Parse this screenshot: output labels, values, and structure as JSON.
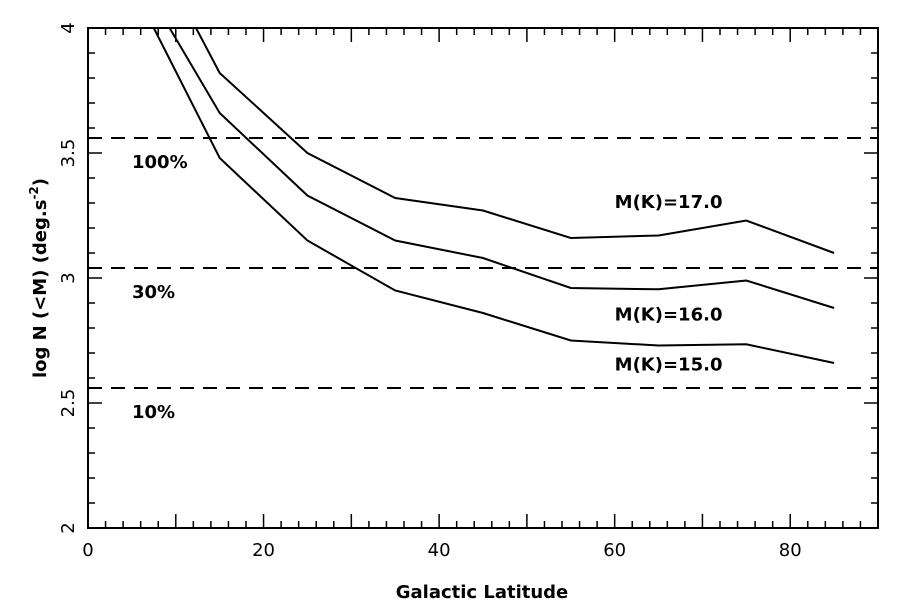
{
  "chart_data": {
    "type": "line",
    "title": "",
    "xlabel": "Galactic Latitude",
    "ylabel": "log N (<M) (deg.s",
    "ylabel_sup": "-2",
    "ylabel_close": ")",
    "xlim": [
      0,
      90
    ],
    "ylim": [
      2,
      4
    ],
    "xticks": [
      0,
      20,
      40,
      60,
      80
    ],
    "xtick_labels": [
      "0",
      "20",
      "40",
      "60",
      "80"
    ],
    "yticks": [
      2,
      2.5,
      3,
      3.5,
      4
    ],
    "ytick_labels": [
      "2",
      "2.5",
      "3",
      "3.5",
      "4"
    ],
    "grid": false,
    "series": [
      {
        "name": "M(K)=17.0",
        "x": [
          12.3,
          15,
          25,
          35,
          45,
          55,
          65,
          75,
          85
        ],
        "y": [
          4.0,
          3.82,
          3.5,
          3.32,
          3.27,
          3.16,
          3.17,
          3.23,
          3.1
        ]
      },
      {
        "name": "M(K)=16.0",
        "x": [
          9.3,
          15,
          25,
          35,
          45,
          55,
          65,
          75,
          85
        ],
        "y": [
          4.0,
          3.66,
          3.33,
          3.15,
          3.08,
          2.96,
          2.955,
          2.99,
          2.88
        ]
      },
      {
        "name": "M(K)=15.0",
        "x": [
          7.5,
          15,
          25,
          35,
          45,
          55,
          65,
          75,
          85
        ],
        "y": [
          4.0,
          3.48,
          3.15,
          2.95,
          2.86,
          2.75,
          2.73,
          2.735,
          2.66
        ]
      }
    ],
    "hlines": [
      {
        "y": 3.56,
        "label": "100%"
      },
      {
        "y": 3.04,
        "label": "30%"
      },
      {
        "y": 2.56,
        "label": "10%"
      }
    ],
    "series_labels": [
      {
        "text": "M(K)=17.0",
        "x": 60,
        "y": 3.28
      },
      {
        "text": "M(K)=16.0",
        "x": 60,
        "y": 2.83
      },
      {
        "text": "M(K)=15.0",
        "x": 60,
        "y": 2.63
      }
    ]
  }
}
